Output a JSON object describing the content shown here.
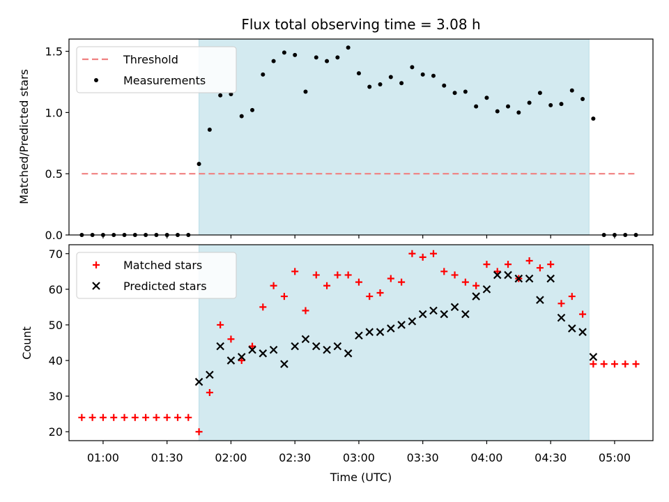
{
  "chart_data": [
    {
      "type": "scatter",
      "title": "Flux total observing time = 3.08 h",
      "ylabel": "Matched/Predicted stars",
      "xlim": [
        "00:44",
        "05:18"
      ],
      "ylim": [
        0,
        1.6
      ],
      "yticks": [
        "0.0",
        "0.5",
        "1.0",
        "1.5"
      ],
      "legend_position": "top-left",
      "shaded_interval": {
        "start": "01:45",
        "end": "04:48",
        "color": "#d3eaf0"
      },
      "series": [
        {
          "name": "Threshold",
          "kind": "dashed-line",
          "color": "#f08080",
          "points": [
            [
              "00:50",
              0.5
            ],
            [
              "05:10",
              0.5
            ]
          ]
        },
        {
          "name": "Measurements",
          "kind": "dots",
          "color": "#000000",
          "points": [
            [
              "00:50",
              0
            ],
            [
              "00:55",
              0
            ],
            [
              "01:00",
              0
            ],
            [
              "01:05",
              0
            ],
            [
              "01:10",
              0
            ],
            [
              "01:15",
              0
            ],
            [
              "01:20",
              0
            ],
            [
              "01:25",
              0
            ],
            [
              "01:30",
              0
            ],
            [
              "01:35",
              0
            ],
            [
              "01:40",
              0
            ],
            [
              "01:45",
              0.58
            ],
            [
              "01:50",
              0.86
            ],
            [
              "01:55",
              1.14
            ],
            [
              "02:00",
              1.15
            ],
            [
              "02:05",
              0.97
            ],
            [
              "02:10",
              1.02
            ],
            [
              "02:15",
              1.31
            ],
            [
              "02:20",
              1.42
            ],
            [
              "02:25",
              1.49
            ],
            [
              "02:30",
              1.47
            ],
            [
              "02:35",
              1.17
            ],
            [
              "02:40",
              1.45
            ],
            [
              "02:45",
              1.42
            ],
            [
              "02:50",
              1.45
            ],
            [
              "02:55",
              1.53
            ],
            [
              "03:00",
              1.32
            ],
            [
              "03:05",
              1.21
            ],
            [
              "03:10",
              1.23
            ],
            [
              "03:15",
              1.29
            ],
            [
              "03:20",
              1.24
            ],
            [
              "03:25",
              1.37
            ],
            [
              "03:30",
              1.31
            ],
            [
              "03:35",
              1.3
            ],
            [
              "03:40",
              1.22
            ],
            [
              "03:45",
              1.16
            ],
            [
              "03:50",
              1.17
            ],
            [
              "03:55",
              1.05
            ],
            [
              "04:00",
              1.12
            ],
            [
              "04:05",
              1.01
            ],
            [
              "04:10",
              1.05
            ],
            [
              "04:15",
              1.0
            ],
            [
              "04:20",
              1.08
            ],
            [
              "04:25",
              1.16
            ],
            [
              "04:30",
              1.06
            ],
            [
              "04:35",
              1.07
            ],
            [
              "04:40",
              1.18
            ],
            [
              "04:45",
              1.11
            ],
            [
              "04:50",
              0.95
            ],
            [
              "04:55",
              0
            ],
            [
              "05:00",
              0
            ],
            [
              "05:05",
              0
            ],
            [
              "05:10",
              0
            ]
          ]
        }
      ]
    },
    {
      "type": "scatter",
      "xlabel": "Time (UTC)",
      "ylabel": "Count",
      "xlim": [
        "00:44",
        "05:18"
      ],
      "ylim": [
        17.5,
        72.5
      ],
      "yticks": [
        "20",
        "30",
        "40",
        "50",
        "60",
        "70"
      ],
      "xticks": [
        "01:00",
        "01:30",
        "02:00",
        "02:30",
        "03:00",
        "03:30",
        "04:00",
        "04:30",
        "05:00"
      ],
      "legend_position": "top-left",
      "shaded_interval": {
        "start": "01:45",
        "end": "04:48",
        "color": "#d3eaf0"
      },
      "series": [
        {
          "name": "Matched stars",
          "kind": "plus",
          "color": "#ff0000",
          "points": [
            [
              "00:50",
              24
            ],
            [
              "00:55",
              24
            ],
            [
              "01:00",
              24
            ],
            [
              "01:05",
              24
            ],
            [
              "01:10",
              24
            ],
            [
              "01:15",
              24
            ],
            [
              "01:20",
              24
            ],
            [
              "01:25",
              24
            ],
            [
              "01:30",
              24
            ],
            [
              "01:35",
              24
            ],
            [
              "01:40",
              24
            ],
            [
              "01:45",
              20
            ],
            [
              "01:50",
              31
            ],
            [
              "01:55",
              50
            ],
            [
              "02:00",
              46
            ],
            [
              "02:05",
              40
            ],
            [
              "02:10",
              44
            ],
            [
              "02:15",
              55
            ],
            [
              "02:20",
              61
            ],
            [
              "02:25",
              58
            ],
            [
              "02:30",
              65
            ],
            [
              "02:35",
              54
            ],
            [
              "02:40",
              64
            ],
            [
              "02:45",
              61
            ],
            [
              "02:50",
              64
            ],
            [
              "02:55",
              64
            ],
            [
              "03:00",
              62
            ],
            [
              "03:05",
              58
            ],
            [
              "03:10",
              59
            ],
            [
              "03:15",
              63
            ],
            [
              "03:20",
              62
            ],
            [
              "03:25",
              70
            ],
            [
              "03:30",
              69
            ],
            [
              "03:35",
              70
            ],
            [
              "03:40",
              65
            ],
            [
              "03:45",
              64
            ],
            [
              "03:50",
              62
            ],
            [
              "03:55",
              61
            ],
            [
              "04:00",
              67
            ],
            [
              "04:05",
              65
            ],
            [
              "04:10",
              67
            ],
            [
              "04:15",
              63
            ],
            [
              "04:20",
              68
            ],
            [
              "04:25",
              66
            ],
            [
              "04:30",
              67
            ],
            [
              "04:35",
              56
            ],
            [
              "04:40",
              58
            ],
            [
              "04:45",
              53
            ],
            [
              "04:50",
              39
            ],
            [
              "04:55",
              39
            ],
            [
              "05:00",
              39
            ],
            [
              "05:05",
              39
            ],
            [
              "05:10",
              39
            ]
          ]
        },
        {
          "name": "Predicted stars",
          "kind": "x",
          "color": "#000000",
          "points": [
            [
              "01:45",
              34
            ],
            [
              "01:50",
              36
            ],
            [
              "01:55",
              44
            ],
            [
              "02:00",
              40
            ],
            [
              "02:05",
              41
            ],
            [
              "02:10",
              43
            ],
            [
              "02:15",
              42
            ],
            [
              "02:20",
              43
            ],
            [
              "02:25",
              39
            ],
            [
              "02:30",
              44
            ],
            [
              "02:35",
              46
            ],
            [
              "02:40",
              44
            ],
            [
              "02:45",
              43
            ],
            [
              "02:50",
              44
            ],
            [
              "02:55",
              42
            ],
            [
              "03:00",
              47
            ],
            [
              "03:05",
              48
            ],
            [
              "03:10",
              48
            ],
            [
              "03:15",
              49
            ],
            [
              "03:20",
              50
            ],
            [
              "03:25",
              51
            ],
            [
              "03:30",
              53
            ],
            [
              "03:35",
              54
            ],
            [
              "03:40",
              53
            ],
            [
              "03:45",
              55
            ],
            [
              "03:50",
              53
            ],
            [
              "03:55",
              58
            ],
            [
              "04:00",
              60
            ],
            [
              "04:05",
              64
            ],
            [
              "04:10",
              64
            ],
            [
              "04:15",
              63
            ],
            [
              "04:20",
              63
            ],
            [
              "04:25",
              57
            ],
            [
              "04:30",
              63
            ],
            [
              "04:35",
              52
            ],
            [
              "04:40",
              49
            ],
            [
              "04:45",
              48
            ],
            [
              "04:50",
              41
            ]
          ]
        }
      ]
    }
  ]
}
